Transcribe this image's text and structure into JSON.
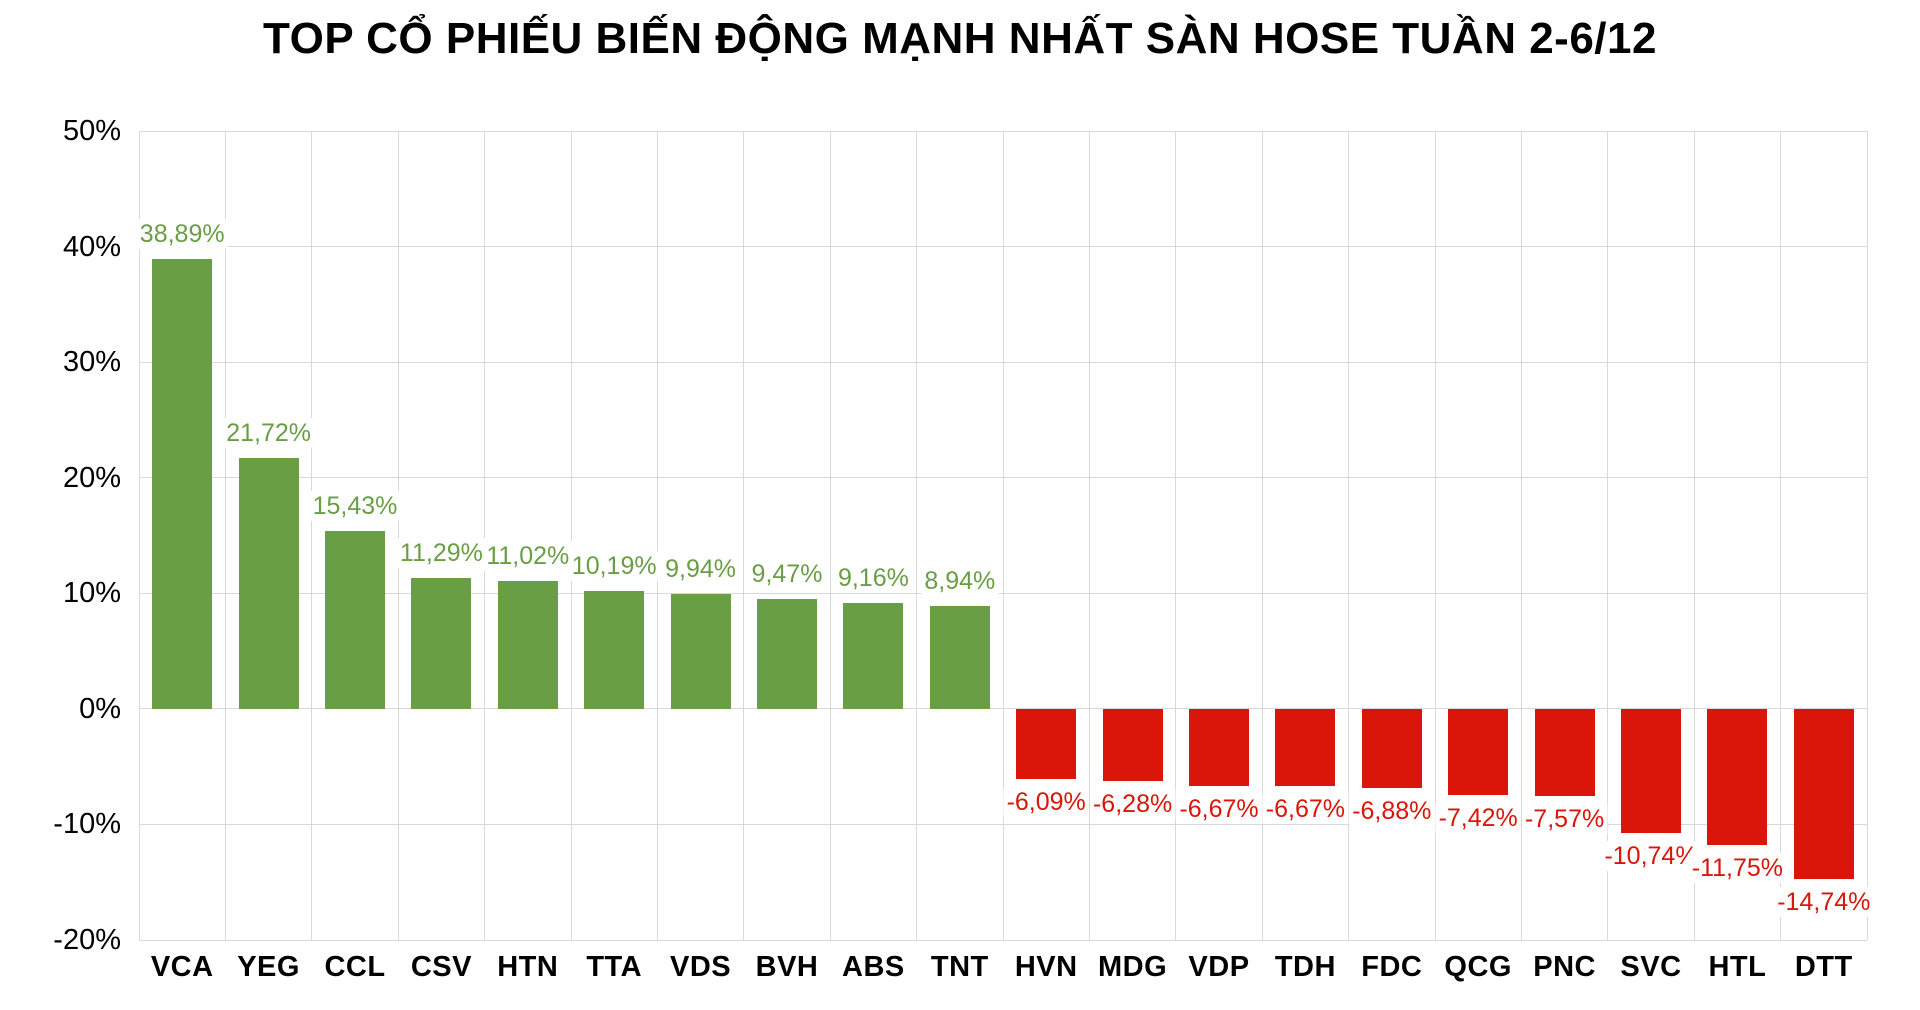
{
  "colors": {
    "positive": "#6a9e45",
    "negative": "#d91609",
    "gridline": "#d9d9dd",
    "title_text": "#000000",
    "axis_text": "#000000",
    "background": "#ffffff"
  },
  "chart_data": {
    "type": "bar",
    "title": "TOP CỔ PHIẾU BIẾN ĐỘNG MẠNH NHẤT SÀN HOSE TUẦN 2-6/12",
    "categories": [
      "VCA",
      "YEG",
      "CCL",
      "CSV",
      "HTN",
      "TTA",
      "VDS",
      "BVH",
      "ABS",
      "TNT",
      "HVN",
      "MDG",
      "VDP",
      "TDH",
      "FDC",
      "QCG",
      "PNC",
      "SVC",
      "HTL",
      "DTT"
    ],
    "values": [
      38.89,
      21.72,
      15.43,
      11.29,
      11.02,
      10.19,
      9.94,
      9.47,
      9.16,
      8.94,
      -6.09,
      -6.28,
      -6.67,
      -6.67,
      -6.88,
      -7.42,
      -7.57,
      -10.74,
      -11.75,
      -14.74
    ],
    "value_labels": [
      "38,89%",
      "21,72%",
      "15,43%",
      "11,29%",
      "11,02%",
      "10,19%",
      "9,94%",
      "9,47%",
      "9,16%",
      "8,94%",
      "-6,09%",
      "-6,28%",
      "-6,67%",
      "-6,67%",
      "-6,88%",
      "-7,42%",
      "-7,57%",
      "-10,74%",
      "-11,75%",
      "-14,74%"
    ],
    "xlabel": "",
    "ylabel": "",
    "ylim": [
      -20,
      50
    ],
    "y_ticks": [
      50,
      40,
      30,
      20,
      10,
      0,
      -10,
      -20
    ],
    "y_tick_labels": [
      "50%",
      "40%",
      "30%",
      "20%",
      "10%",
      "0%",
      "-10%",
      "-20%"
    ],
    "grid": true,
    "legend": "none"
  }
}
